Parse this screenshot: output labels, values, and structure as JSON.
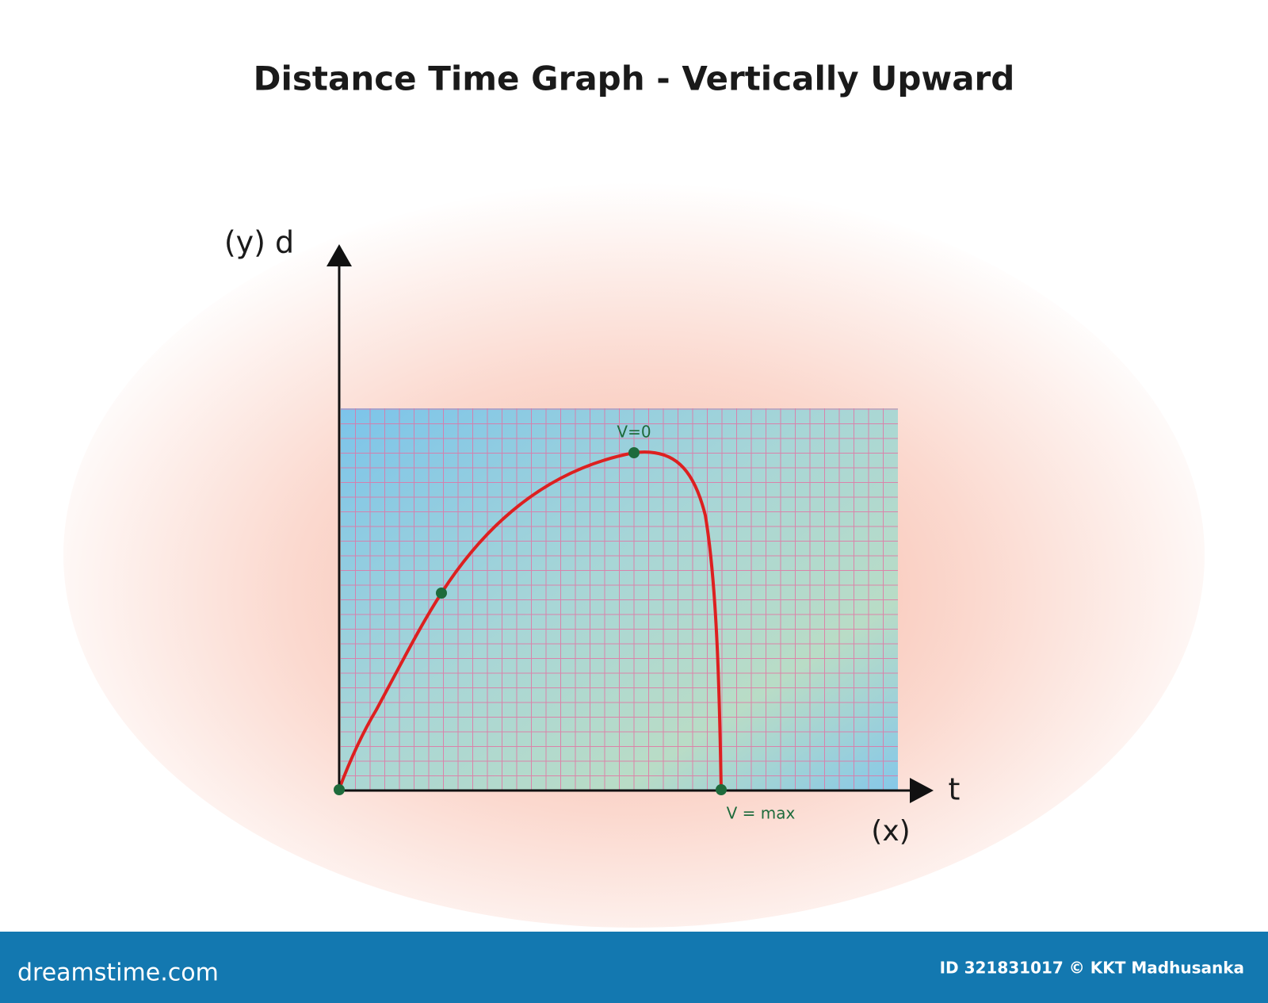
{
  "header": {
    "title": "Distance Time Graph - Vertically Upward"
  },
  "axes": {
    "y_label": "(y) d",
    "x_symbol": "t",
    "x_label": "(x)"
  },
  "annotations": {
    "peak": "V=0",
    "ground": "V = max"
  },
  "footer": {
    "site": "dreamstime.com",
    "credit": "ID 321831017 © KKT Madhusanka"
  }
}
